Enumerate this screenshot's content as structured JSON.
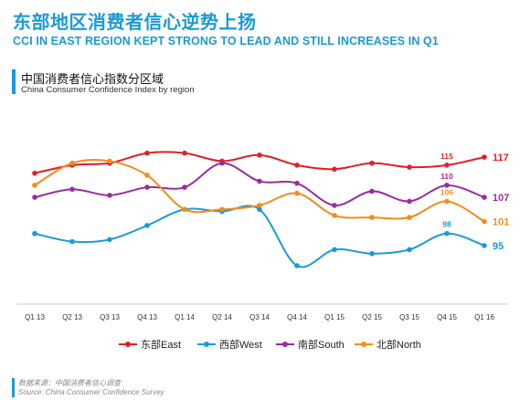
{
  "header": {
    "title_cn": "东部地区消费者信心逆势上扬",
    "title_en": "CCI IN EAST REGION KEPT STRONG TO LEAD AND STILL INCREASES IN Q1"
  },
  "subtitle": {
    "cn": "中国消费者信心指数分区域",
    "en": "China Consumer Confidence Index by region"
  },
  "footer": {
    "source_cn": "数据来源：中国消费者信心调查",
    "source_en": "Source: China Consumer Confidence Survey"
  },
  "chart_data": {
    "type": "line",
    "x": [
      "Q1 13",
      "Q2 13",
      "Q3 13",
      "Q4 13",
      "Q1 14",
      "Q2 14",
      "Q3 14",
      "Q4 14",
      "Q1 15",
      "Q2 15",
      "Q3 15",
      "Q4 15",
      "Q1 16"
    ],
    "series": [
      {
        "name": "东部East",
        "color": "#e21f26",
        "values": [
          113,
          115,
          115.5,
          118,
          118,
          116,
          117.5,
          115,
          114,
          115.5,
          114.5,
          115,
          117
        ]
      },
      {
        "name": "西部West",
        "color": "#1b9ad6",
        "values": [
          98,
          96,
          96.5,
          100,
          104,
          103.5,
          104,
          90,
          94,
          93,
          94,
          98,
          95
        ]
      },
      {
        "name": "南部South",
        "color": "#9b2c9d",
        "values": [
          107,
          109,
          107.5,
          109.5,
          109.5,
          115.5,
          111,
          110.5,
          105,
          108.5,
          106,
          110,
          107
        ]
      },
      {
        "name": "北部North",
        "color": "#f28c1e",
        "values": [
          110,
          115.5,
          116,
          112.5,
          104,
          104,
          105,
          108,
          102.5,
          102,
          102,
          106,
          101
        ]
      }
    ],
    "point_labels": [
      {
        "series": 0,
        "index": 11,
        "text": "115"
      },
      {
        "series": 0,
        "index": 12,
        "text": "117"
      },
      {
        "series": 1,
        "index": 11,
        "text": "98"
      },
      {
        "series": 1,
        "index": 12,
        "text": "95"
      },
      {
        "series": 2,
        "index": 11,
        "text": "110"
      },
      {
        "series": 2,
        "index": 12,
        "text": "107"
      },
      {
        "series": 3,
        "index": 11,
        "text": "106"
      },
      {
        "series": 3,
        "index": 12,
        "text": "101"
      }
    ],
    "ylim": [
      80,
      122
    ],
    "grid": false,
    "legend_position": "bottom"
  }
}
